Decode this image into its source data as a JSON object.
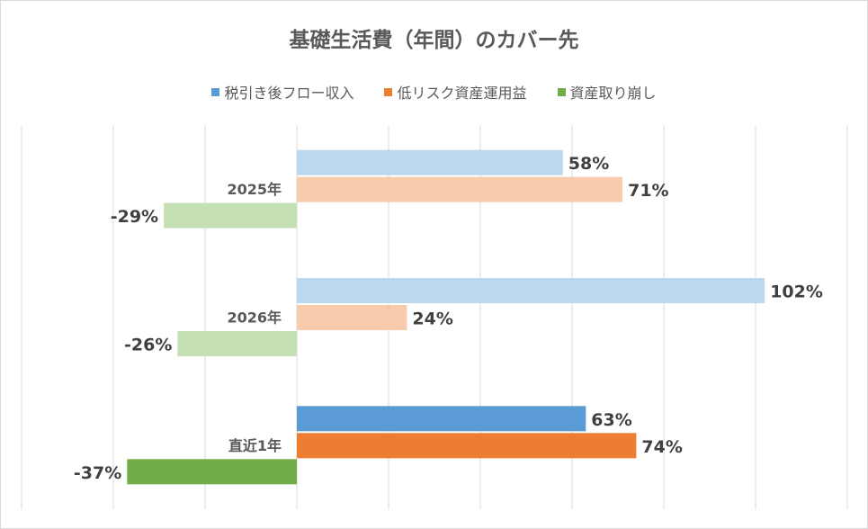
{
  "chart_data": {
    "type": "bar",
    "orientation": "horizontal",
    "title": "基礎生活費（年間）のカバー先",
    "categories": [
      "2025年",
      "2026年",
      "直近1年"
    ],
    "series": [
      {
        "name": "税引き後フロー収入",
        "values": [
          58,
          102,
          63
        ],
        "color": "#5B9BD5",
        "faded_color": "#BDD7EE"
      },
      {
        "name": "低リスク資産運用益",
        "values": [
          71,
          24,
          74
        ],
        "color": "#ED7D31",
        "faded_color": "#F8CBAD"
      },
      {
        "name": "資産取り崩し",
        "values": [
          -29,
          -26,
          -37
        ],
        "color": "#70AD47",
        "faded_color": "#C5E0B4"
      }
    ],
    "faded_categories": [
      "2025年",
      "2026年"
    ],
    "value_suffix": "%",
    "xlim": [
      -60,
      120
    ],
    "grid_step": 20,
    "grid": true,
    "legend_position": "top",
    "xlabel": "",
    "ylabel": ""
  }
}
